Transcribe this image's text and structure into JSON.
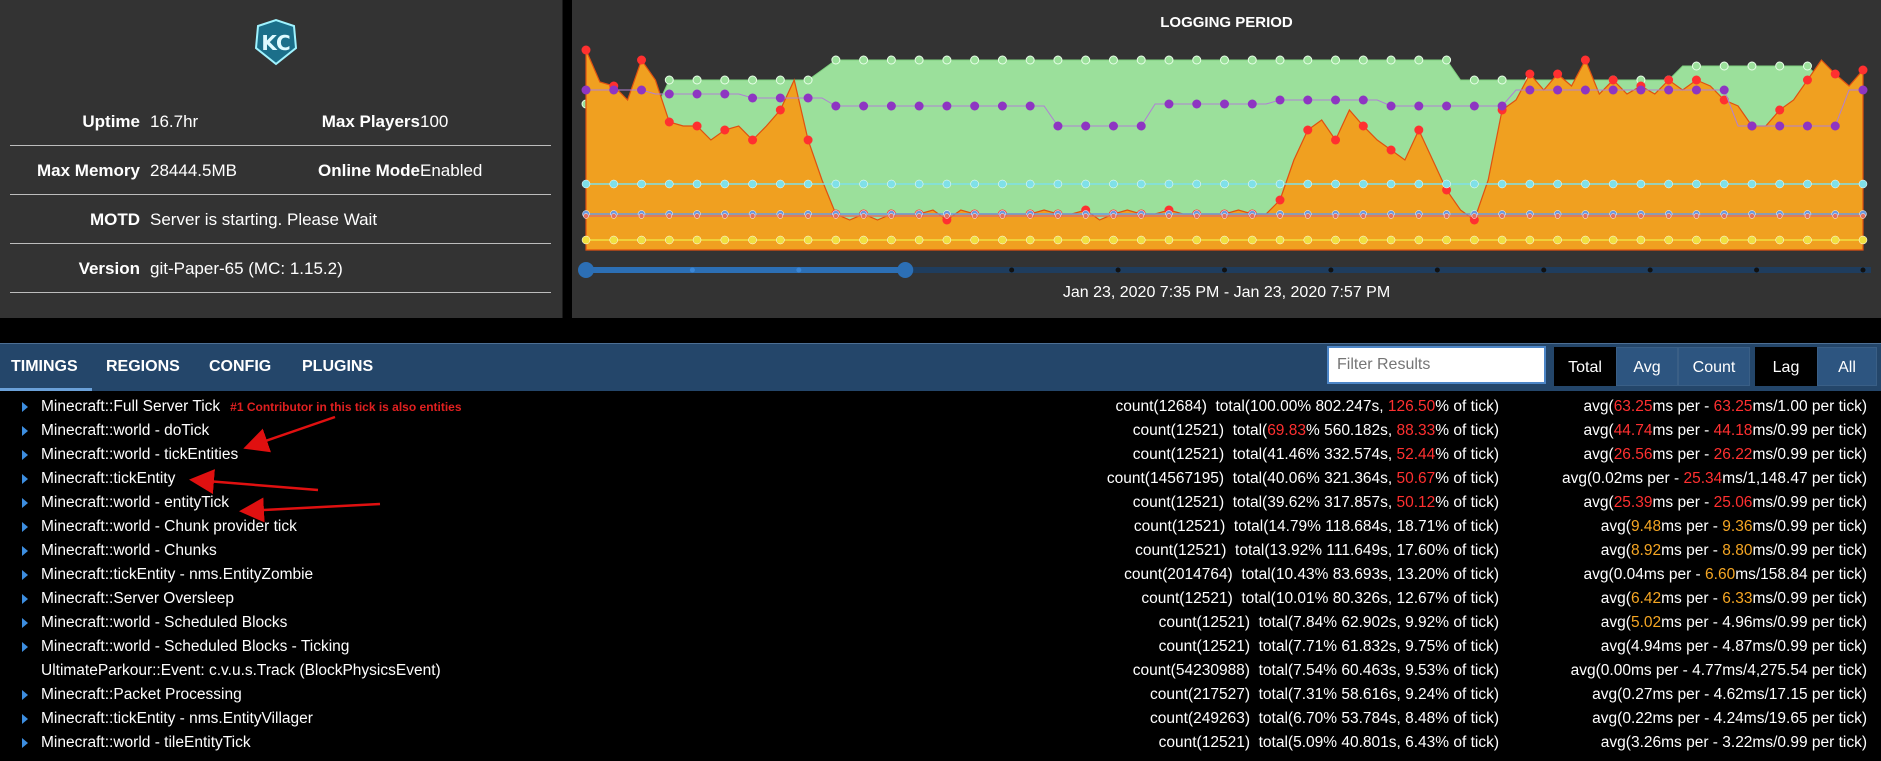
{
  "server": {
    "logo_text": "KC",
    "uptime_label": "Uptime",
    "uptime": "16.7hr",
    "max_players_label": "Max Players",
    "max_players": "100",
    "max_memory_label": "Max Memory",
    "max_memory": "28444.5MB",
    "online_mode_label": "Online Mode",
    "online_mode": "Enabled",
    "motd_label": "MOTD",
    "motd": "Server is starting. Please Wait",
    "version_label": "Version",
    "version": "git-Paper-65 (MC: 1.15.2)"
  },
  "logging": {
    "title": "LOGGING PERIOD",
    "range": "Jan 23, 2020 7:35 PM - Jan 23, 2020 7:57 PM"
  },
  "chart_data": {
    "type": "area",
    "title": "LOGGING PERIOD",
    "colors": {
      "green": "#9be09b",
      "orange": "#f0a020",
      "purple": "#8e35c2",
      "cyan": "#7fe0e8",
      "blue": "#6a9ae0",
      "yellow": "#f0e040",
      "red_markers": "#ff3030"
    },
    "green_area": [
      0.73,
      0.6,
      0.7,
      0.7,
      0.55,
      0.7,
      0.85,
      0.85,
      0.85,
      0.85,
      0.85,
      0.85,
      0.85,
      0.85,
      0.85,
      0.85,
      0.85,
      0.9,
      0.95,
      0.95,
      0.95,
      0.95,
      0.95,
      0.95,
      0.95,
      0.95,
      0.95,
      0.95,
      0.95,
      0.95,
      0.95,
      0.95,
      0.95,
      0.95,
      0.95,
      0.95,
      0.95,
      0.95,
      0.95,
      0.95,
      0.95,
      0.95,
      0.95,
      0.95,
      0.95,
      0.95,
      0.95,
      0.95,
      0.95,
      0.95,
      0.95,
      0.95,
      0.95,
      0.95,
      0.95,
      0.95,
      0.95,
      0.95,
      0.95,
      0.95,
      0.95,
      0.95,
      0.95,
      0.85,
      0.85,
      0.85,
      0.85,
      0.85,
      0.85,
      0.85,
      0.85,
      0.85,
      0.85,
      0.85,
      0.85,
      0.85,
      0.85,
      0.85,
      0.85,
      0.92,
      0.92,
      0.92,
      0.92,
      0.92,
      0.92,
      0.92,
      0.92,
      0.92,
      0.92,
      0.85,
      0.8,
      0.8
    ],
    "orange_area": [
      1.0,
      0.84,
      0.82,
      0.75,
      0.95,
      0.85,
      0.64,
      0.62,
      0.62,
      0.55,
      0.6,
      0.62,
      0.55,
      0.62,
      0.7,
      0.85,
      0.55,
      0.35,
      0.18,
      0.15,
      0.18,
      0.15,
      0.18,
      0.18,
      0.18,
      0.2,
      0.15,
      0.2,
      0.18,
      0.18,
      0.18,
      0.18,
      0.18,
      0.2,
      0.18,
      0.18,
      0.2,
      0.15,
      0.18,
      0.2,
      0.18,
      0.18,
      0.2,
      0.18,
      0.18,
      0.18,
      0.18,
      0.2,
      0.18,
      0.18,
      0.25,
      0.45,
      0.6,
      0.65,
      0.55,
      0.7,
      0.62,
      0.55,
      0.5,
      0.45,
      0.6,
      0.45,
      0.3,
      0.2,
      0.15,
      0.35,
      0.7,
      0.75,
      0.88,
      0.8,
      0.88,
      0.82,
      0.95,
      0.78,
      0.85,
      0.78,
      0.82,
      0.78,
      0.85,
      0.8,
      0.85,
      0.82,
      0.75,
      0.72,
      0.62,
      0.62,
      0.7,
      0.75,
      0.85,
      0.95,
      0.88,
      0.82,
      0.9
    ],
    "purple_line": [
      0.8,
      0.8,
      0.8,
      0.8,
      0.8,
      0.78,
      0.78,
      0.78,
      0.78,
      0.78,
      0.78,
      0.78,
      0.76,
      0.76,
      0.76,
      0.76,
      0.76,
      0.76,
      0.72,
      0.72,
      0.72,
      0.72,
      0.72,
      0.72,
      0.72,
      0.72,
      0.72,
      0.72,
      0.72,
      0.72,
      0.72,
      0.72,
      0.72,
      0.72,
      0.62,
      0.62,
      0.62,
      0.62,
      0.62,
      0.62,
      0.62,
      0.73,
      0.73,
      0.73,
      0.73,
      0.73,
      0.73,
      0.73,
      0.73,
      0.73,
      0.75,
      0.75,
      0.75,
      0.75,
      0.75,
      0.75,
      0.75,
      0.75,
      0.72,
      0.72,
      0.72,
      0.72,
      0.72,
      0.72,
      0.72,
      0.72,
      0.72,
      0.8,
      0.8,
      0.8,
      0.8,
      0.8,
      0.8,
      0.8,
      0.8,
      0.8,
      0.8,
      0.8,
      0.8,
      0.8,
      0.8,
      0.8,
      0.8,
      0.62,
      0.62,
      0.62,
      0.62,
      0.62,
      0.62,
      0.62,
      0.62,
      0.8,
      0.8
    ],
    "cyan_line": 0.33,
    "blue_line": 0.18,
    "red_line": 0.17,
    "yellow_line": 0.05,
    "slider": {
      "selected_start": 0.0,
      "selected_end": 0.25
    }
  },
  "nav": {
    "tabs": [
      "TIMINGS",
      "REGIONS",
      "CONFIG",
      "PLUGINS"
    ],
    "filter_placeholder": "Filter Results",
    "sort_buttons": [
      "Total",
      "Avg",
      "Count"
    ],
    "view_buttons": [
      "Lag",
      "All"
    ]
  },
  "rows": [
    {
      "name": "Minecraft::Full Server Tick",
      "note": "#1 Contributor in this tick is also entities",
      "count": "count(12684)",
      "total_pre": "total(100.00% 802.247s, ",
      "total_hl": "126.50",
      "total_hl_color": "r",
      "total_mid": "",
      "total_hl2": "",
      "total_post": "% of tick)",
      "avg_pre": "avg(",
      "avg_hl1": "63.25",
      "avg_c1": "r",
      "avg_mid": "ms per - ",
      "avg_hl2": "63.25",
      "avg_c2": "r",
      "avg_post": "ms/1.00 per tick)",
      "arrow": true
    },
    {
      "name": "Minecraft::world - doTick",
      "count": "count(12521)",
      "total_pre": "total(",
      "total_hl": "69.83",
      "total_hl_color": "r",
      "total_mid": "% 560.182s, ",
      "total_hl2": "88.33",
      "total_post": "% of tick)",
      "avg_pre": "avg(",
      "avg_hl1": "44.74",
      "avg_c1": "r",
      "avg_mid": "ms per - ",
      "avg_hl2": "44.18",
      "avg_c2": "r",
      "avg_post": "ms/0.99 per tick)",
      "arrow": true
    },
    {
      "name": "Minecraft::world - tickEntities",
      "count": "count(12521)",
      "total_pre": "total(41.46% 332.574s, ",
      "total_hl": "52.44",
      "total_hl_color": "r",
      "total_mid": "",
      "total_hl2": "",
      "total_post": "% of tick)",
      "avg_pre": "avg(",
      "avg_hl1": "26.56",
      "avg_c1": "r",
      "avg_mid": "ms per - ",
      "avg_hl2": "26.22",
      "avg_c2": "r",
      "avg_post": "ms/0.99 per tick)",
      "arrow": true
    },
    {
      "name": "Minecraft::tickEntity",
      "count": "count(14567195)",
      "total_pre": "total(40.06% 321.364s, ",
      "total_hl": "50.67",
      "total_hl_color": "r",
      "total_mid": "",
      "total_hl2": "",
      "total_post": "% of tick)",
      "avg_pre": "avg(0.02ms per - ",
      "avg_hl1": "",
      "avg_c1": "r",
      "avg_mid": "",
      "avg_hl2": "25.34",
      "avg_c2": "r",
      "avg_post": "ms/1,148.47 per tick)",
      "arrow": true
    },
    {
      "name": "Minecraft::world - entityTick",
      "count": "count(12521)",
      "total_pre": "total(39.62% 317.857s, ",
      "total_hl": "50.12",
      "total_hl_color": "r",
      "total_mid": "",
      "total_hl2": "",
      "total_post": "% of tick)",
      "avg_pre": "avg(",
      "avg_hl1": "25.39",
      "avg_c1": "r",
      "avg_mid": "ms per - ",
      "avg_hl2": "25.06",
      "avg_c2": "r",
      "avg_post": "ms/0.99 per tick)",
      "arrow": true
    },
    {
      "name": "Minecraft::world - Chunk provider tick",
      "count": "count(12521)",
      "total_pre": "total(14.79% 118.684s, 18.71% of tick)",
      "total_hl": "",
      "total_hl_color": "r",
      "total_mid": "",
      "total_hl2": "",
      "total_post": "",
      "avg_pre": "avg(",
      "avg_hl1": "9.48",
      "avg_c1": "o",
      "avg_mid": "ms per - ",
      "avg_hl2": "9.36",
      "avg_c2": "o",
      "avg_post": "ms/0.99 per tick)",
      "arrow": true
    },
    {
      "name": "Minecraft::world - Chunks",
      "count": "count(12521)",
      "total_pre": "total(13.92% 111.649s, 17.60% of tick)",
      "total_hl": "",
      "total_hl_color": "r",
      "total_mid": "",
      "total_hl2": "",
      "total_post": "",
      "avg_pre": "avg(",
      "avg_hl1": "8.92",
      "avg_c1": "o",
      "avg_mid": "ms per - ",
      "avg_hl2": "8.80",
      "avg_c2": "o",
      "avg_post": "ms/0.99 per tick)",
      "arrow": true
    },
    {
      "name": "Minecraft::tickEntity - nms.EntityZombie",
      "count": "count(2014764)",
      "total_pre": "total(10.43% 83.693s, 13.20% of tick)",
      "total_hl": "",
      "total_hl_color": "r",
      "total_mid": "",
      "total_hl2": "",
      "total_post": "",
      "avg_pre": "avg(0.04ms per - ",
      "avg_hl1": "",
      "avg_c1": "o",
      "avg_mid": "",
      "avg_hl2": "6.60",
      "avg_c2": "o",
      "avg_post": "ms/158.84 per tick)",
      "arrow": true
    },
    {
      "name": "Minecraft::Server Oversleep",
      "count": "count(12521)",
      "total_pre": "total(10.01% 80.326s, 12.67% of tick)",
      "total_hl": "",
      "total_hl_color": "r",
      "total_mid": "",
      "total_hl2": "",
      "total_post": "",
      "avg_pre": "avg(",
      "avg_hl1": "6.42",
      "avg_c1": "o",
      "avg_mid": "ms per - ",
      "avg_hl2": "6.33",
      "avg_c2": "o",
      "avg_post": "ms/0.99 per tick)",
      "arrow": true
    },
    {
      "name": "Minecraft::world - Scheduled Blocks",
      "count": "count(12521)",
      "total_pre": "total(7.84% 62.902s, 9.92% of tick)",
      "total_hl": "",
      "total_hl_color": "r",
      "total_mid": "",
      "total_hl2": "",
      "total_post": "",
      "avg_pre": "avg(",
      "avg_hl1": "5.02",
      "avg_c1": "o",
      "avg_mid": "ms per - 4.96ms/0.99 per tick)",
      "avg_hl2": "",
      "avg_c2": "o",
      "avg_post": "",
      "arrow": true
    },
    {
      "name": "Minecraft::world - Scheduled Blocks - Ticking",
      "count": "count(12521)",
      "total_pre": "total(7.71% 61.832s, 9.75% of tick)",
      "total_hl": "",
      "total_hl_color": "r",
      "total_mid": "",
      "total_hl2": "",
      "total_post": "",
      "avg_pre": "avg(4.94ms per - 4.87ms/0.99 per tick)",
      "avg_hl1": "",
      "avg_c1": "o",
      "avg_mid": "",
      "avg_hl2": "",
      "avg_c2": "o",
      "avg_post": "",
      "arrow": true
    },
    {
      "name": "UltimateParkour::Event: c.v.u.s.Track (BlockPhysicsEvent)",
      "count": "count(54230988)",
      "total_pre": "total(7.54% 60.463s, 9.53% of tick)",
      "total_hl": "",
      "total_hl_color": "r",
      "total_mid": "",
      "total_hl2": "",
      "total_post": "",
      "avg_pre": "avg(0.00ms per - 4.77ms/4,275.54 per tick)",
      "avg_hl1": "",
      "avg_c1": "o",
      "avg_mid": "",
      "avg_hl2": "",
      "avg_c2": "o",
      "avg_post": "",
      "arrow": false
    },
    {
      "name": "Minecraft::Packet Processing",
      "count": "count(217527)",
      "total_pre": "total(7.31% 58.616s, 9.24% of tick)",
      "total_hl": "",
      "total_hl_color": "r",
      "total_mid": "",
      "total_hl2": "",
      "total_post": "",
      "avg_pre": "avg(0.27ms per - 4.62ms/17.15 per tick)",
      "avg_hl1": "",
      "avg_c1": "o",
      "avg_mid": "",
      "avg_hl2": "",
      "avg_c2": "o",
      "avg_post": "",
      "arrow": true
    },
    {
      "name": "Minecraft::tickEntity - nms.EntityVillager",
      "count": "count(249263)",
      "total_pre": "total(6.70% 53.784s, 8.48% of tick)",
      "total_hl": "",
      "total_hl_color": "r",
      "total_mid": "",
      "total_hl2": "",
      "total_post": "",
      "avg_pre": "avg(0.22ms per - 4.24ms/19.65 per tick)",
      "avg_hl1": "",
      "avg_c1": "o",
      "avg_mid": "",
      "avg_hl2": "",
      "avg_c2": "o",
      "avg_post": "",
      "arrow": true
    },
    {
      "name": "Minecraft::world - tileEntityTick",
      "count": "count(12521)",
      "total_pre": "total(5.09% 40.801s, 6.43% of tick)",
      "total_hl": "",
      "total_hl_color": "r",
      "total_mid": "",
      "total_hl2": "",
      "total_post": "",
      "avg_pre": "avg(3.26ms per - 3.22ms/0.99 per tick)",
      "avg_hl1": "",
      "avg_c1": "o",
      "avg_mid": "",
      "avg_hl2": "",
      "avg_c2": "o",
      "avg_post": "",
      "arrow": true
    }
  ]
}
